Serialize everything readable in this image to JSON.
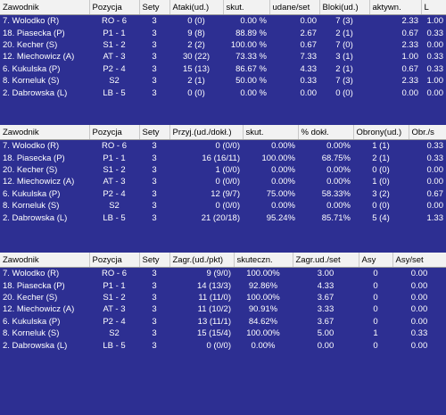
{
  "table1": {
    "headers": [
      "Zawodnik",
      "Pozycja",
      "Sety",
      "Ataki(ud.)",
      "skut.",
      "udane/set",
      "Bloki(ud.)",
      "aktywn.",
      "L"
    ],
    "rows": [
      [
        "7. Wolodko (R)",
        "RO - 6",
        "3",
        "0 (0)",
        "0.00 %",
        "0.00",
        "7 (3)",
        "2.33",
        "1.00"
      ],
      [
        "18. Piasecka (P)",
        "P1 - 1",
        "3",
        "9 (8)",
        "88.89 %",
        "2.67",
        "2 (1)",
        "0.67",
        "0.33"
      ],
      [
        "20. Kecher (S)",
        "S1 - 2",
        "3",
        "2 (2)",
        "100.00 %",
        "0.67",
        "7 (0)",
        "2.33",
        "0.00"
      ],
      [
        "12. Miechowicz (A)",
        "AT - 3",
        "3",
        "30 (22)",
        "73.33 %",
        "7.33",
        "3 (1)",
        "1.00",
        "0.33"
      ],
      [
        "6. Kukulska (P)",
        "P2 - 4",
        "3",
        "15 (13)",
        "86.67 %",
        "4.33",
        "2 (1)",
        "0.67",
        "0.33"
      ],
      [
        "8. Korneluk (S)",
        "S2",
        "3",
        "2 (1)",
        "50.00 %",
        "0.33",
        "7 (3)",
        "2.33",
        "1.00"
      ],
      [
        "2. Dabrowska (L)",
        "LB - 5",
        "3",
        "0 (0)",
        "0.00 %",
        "0.00",
        "0 (0)",
        "0.00",
        "0.00"
      ]
    ]
  },
  "table2": {
    "headers": [
      "Zawodnik",
      "Pozycja",
      "Sety",
      "Przyj.(ud./dokł.)",
      "skut.",
      "% dokł.",
      "Obrony(ud.)",
      "Obr./s"
    ],
    "rows": [
      [
        "7. Wolodko (R)",
        "RO - 6",
        "3",
        "0 (0/0)",
        "0.00%",
        "0.00%",
        "1 (1)",
        "0.33"
      ],
      [
        "18. Piasecka (P)",
        "P1 - 1",
        "3",
        "16 (16/11)",
        "100.00%",
        "68.75%",
        "2 (1)",
        "0.33"
      ],
      [
        "20. Kecher (S)",
        "S1 - 2",
        "3",
        "1 (0/0)",
        "0.00%",
        "0.00%",
        "0 (0)",
        "0.00"
      ],
      [
        "12. Miechowicz (A)",
        "AT - 3",
        "3",
        "0 (0/0)",
        "0.00%",
        "0.00%",
        "1 (0)",
        "0.00"
      ],
      [
        "6. Kukulska (P)",
        "P2 - 4",
        "3",
        "12 (9/7)",
        "75.00%",
        "58.33%",
        "3 (2)",
        "0.67"
      ],
      [
        "8. Korneluk (S)",
        "S2",
        "3",
        "0 (0/0)",
        "0.00%",
        "0.00%",
        "0 (0)",
        "0.00"
      ],
      [
        "2. Dabrowska (L)",
        "LB - 5",
        "3",
        "21 (20/18)",
        "95.24%",
        "85.71%",
        "5 (4)",
        "1.33"
      ]
    ]
  },
  "table3": {
    "headers": [
      "Zawodnik",
      "Pozycja",
      "Sety",
      "Zagr.(ud./pkt)",
      "skuteczn.",
      "Zagr.ud./set",
      "Asy",
      "Asy/set"
    ],
    "rows": [
      [
        "7. Wolodko (R)",
        "RO - 6",
        "3",
        "9 (9/0)",
        "100.00%",
        "3.00",
        "0",
        "0.00"
      ],
      [
        "18. Piasecka (P)",
        "P1 - 1",
        "3",
        "14 (13/3)",
        "92.86%",
        "4.33",
        "0",
        "0.00"
      ],
      [
        "20. Kecher (S)",
        "S1 - 2",
        "3",
        "11 (11/0)",
        "100.00%",
        "3.67",
        "0",
        "0.00"
      ],
      [
        "12. Miechowicz (A)",
        "AT - 3",
        "3",
        "11 (10/2)",
        "90.91%",
        "3.33",
        "0",
        "0.00"
      ],
      [
        "6. Kukulska (P)",
        "P2 - 4",
        "3",
        "13 (11/1)",
        "84.62%",
        "3.67",
        "0",
        "0.00"
      ],
      [
        "8. Korneluk (S)",
        "S2",
        "3",
        "15 (15/4)",
        "100.00%",
        "5.00",
        "1",
        "0.33"
      ],
      [
        "2. Dabrowska (L)",
        "LB - 5",
        "3",
        "0 (0/0)",
        "0.00%",
        "0.00",
        "0",
        "0.00"
      ]
    ]
  }
}
